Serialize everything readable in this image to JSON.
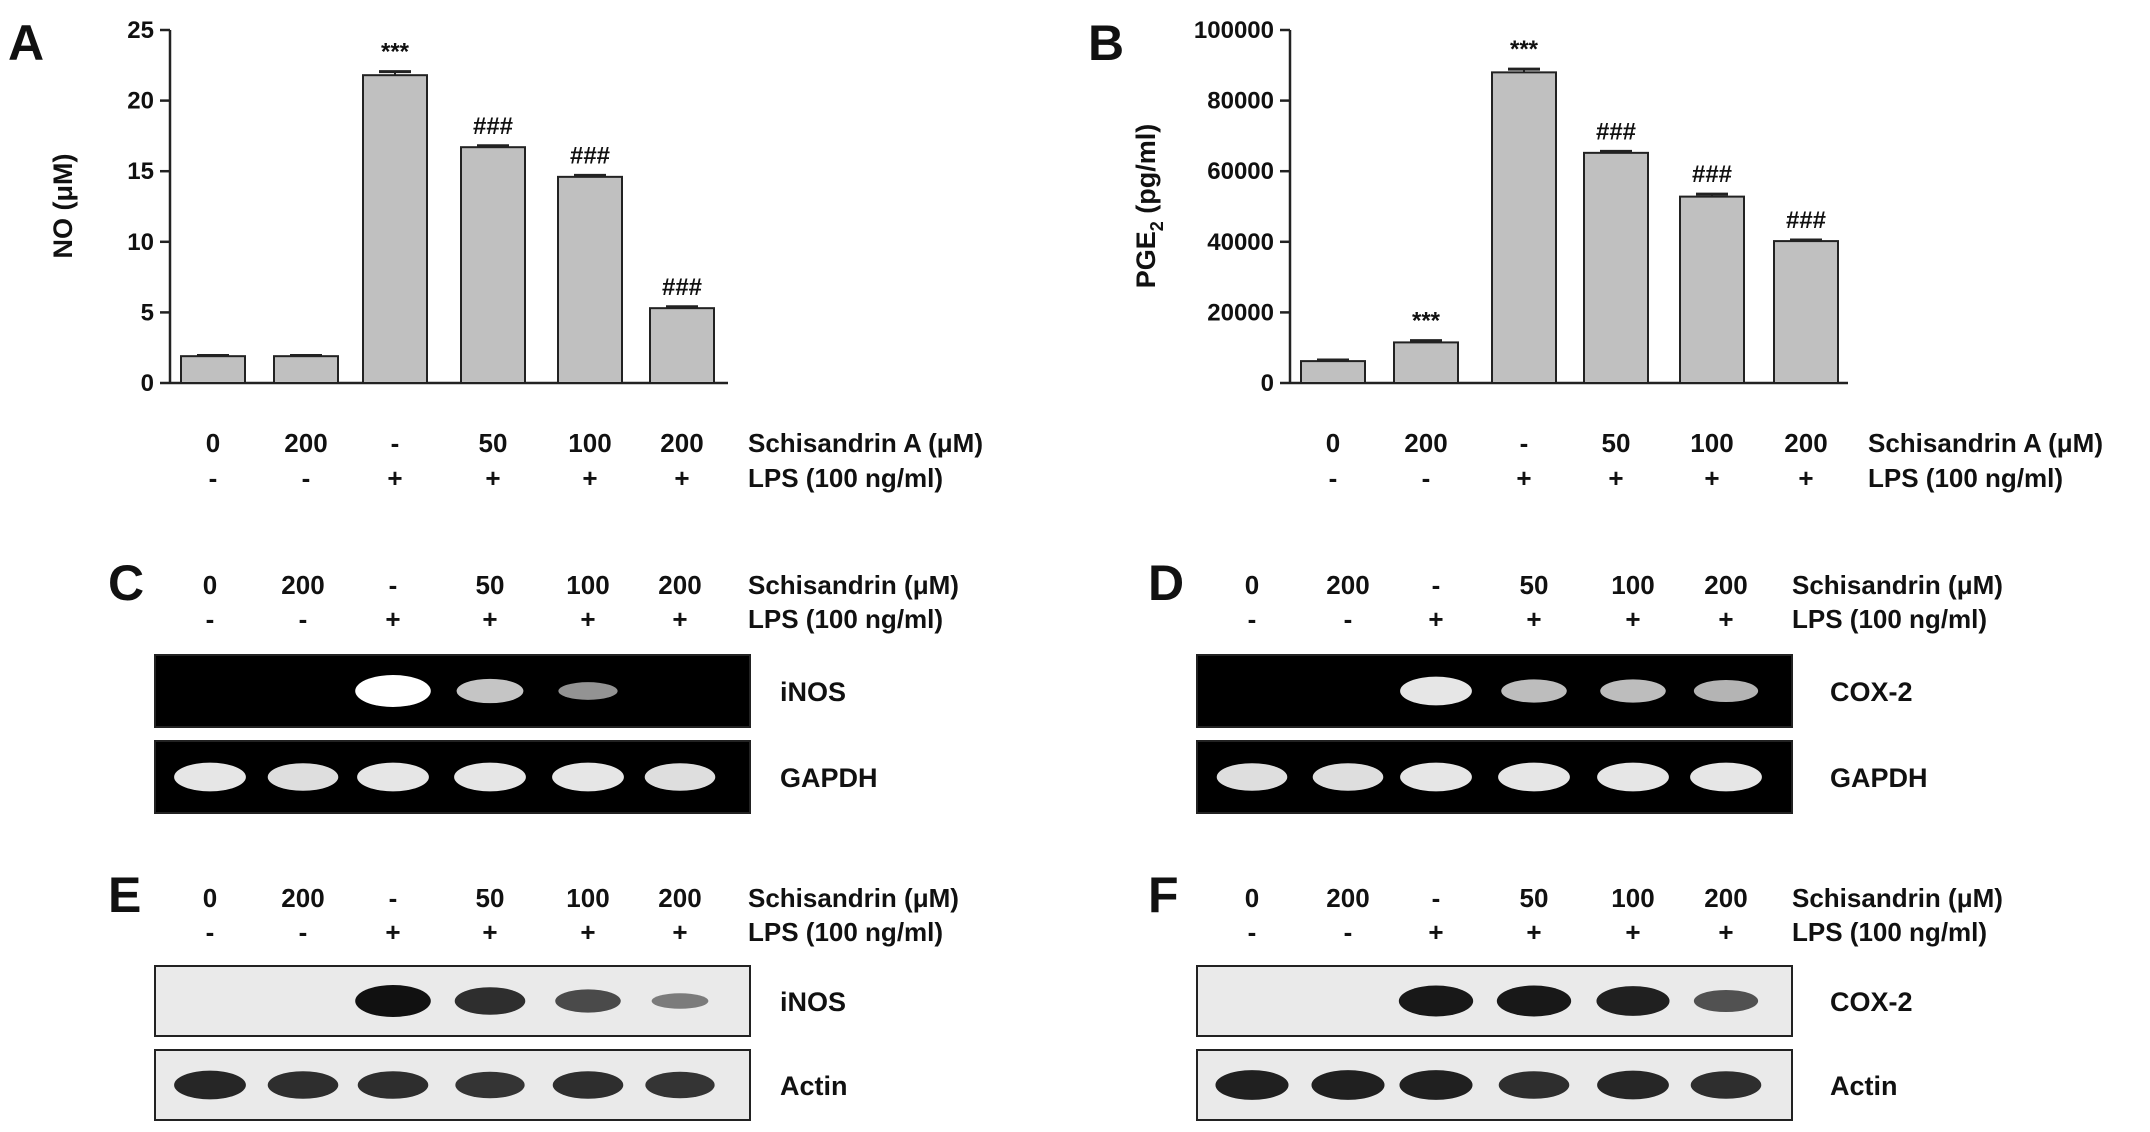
{
  "panels": [
    {
      "letter": "A"
    },
    {
      "letter": "B"
    },
    {
      "letter": "C"
    },
    {
      "letter": "D"
    },
    {
      "letter": "E"
    },
    {
      "letter": "F"
    }
  ],
  "condition_rows": {
    "schisandrin_doses": [
      "0",
      "200",
      "-",
      "50",
      "100",
      "200"
    ],
    "lps_signs": [
      "-",
      "-",
      "+",
      "+",
      "+",
      "+"
    ],
    "label_schisandrin_a": "Schisandrin A (μM)",
    "label_schisandrin": "Schisandrin (μM)",
    "label_lps": "LPS (100 ng/ml)"
  },
  "chart_data": [
    {
      "panel": "A",
      "type": "bar",
      "categories": [
        "0 / -",
        "200 / -",
        "- / +",
        "50 / +",
        "100 / +",
        "200 / +"
      ],
      "values": [
        1.9,
        1.9,
        21.8,
        16.7,
        14.6,
        5.3
      ],
      "errors": [
        0.05,
        0.05,
        0.25,
        0.1,
        0.1,
        0.1
      ],
      "annotations": [
        "",
        "",
        "***",
        "###",
        "###",
        "###"
      ],
      "ylabel": "NO  (μM)",
      "ylim": [
        0,
        25
      ],
      "yticks": [
        "0",
        "5",
        "10",
        "15",
        "20",
        "25"
      ],
      "bar_color": "#c0c0c0"
    },
    {
      "panel": "B",
      "type": "bar",
      "categories": [
        "0 / -",
        "200 / -",
        "- / +",
        "50 / +",
        "100 / +",
        "200 / +"
      ],
      "values": [
        6200,
        11500,
        88000,
        65200,
        52800,
        40200
      ],
      "errors": [
        300,
        500,
        900,
        400,
        700,
        300
      ],
      "annotations": [
        "",
        "***",
        "***",
        "###",
        "###",
        "###"
      ],
      "ylabel_main": "PGE",
      "ylabel_sub": "2",
      "ylabel_tail": " (pg/ml)",
      "ylim": [
        0,
        100000
      ],
      "yticks": [
        "0",
        "20000",
        "40000",
        "60000",
        "80000",
        "100000"
      ],
      "bar_color": "#c0c0c0"
    }
  ],
  "blots": {
    "C": {
      "bands": [
        {
          "label": "iNOS",
          "background": "#000000",
          "band_color": "#ffffff",
          "intensity": [
            0,
            0,
            1.0,
            0.65,
            0.35,
            0
          ]
        },
        {
          "label": "GAPDH",
          "background": "#000000",
          "band_color": "#ffffff",
          "intensity": [
            0.85,
            0.8,
            0.85,
            0.85,
            0.85,
            0.8
          ]
        }
      ]
    },
    "D": {
      "bands": [
        {
          "label": "COX-2",
          "background": "#000000",
          "band_color": "#ffffff",
          "intensity": [
            0,
            0,
            0.85,
            0.6,
            0.6,
            0.55
          ]
        },
        {
          "label": "GAPDH",
          "background": "#000000",
          "band_color": "#ffffff",
          "intensity": [
            0.8,
            0.8,
            0.85,
            0.85,
            0.85,
            0.85
          ]
        }
      ]
    },
    "E": {
      "bands": [
        {
          "label": "iNOS",
          "background": "#eaeaea",
          "band_color": "#111111",
          "intensity": [
            0,
            0,
            1.0,
            0.8,
            0.6,
            0.25
          ]
        },
        {
          "label": "Actin",
          "background": "#eaeaea",
          "band_color": "#111111",
          "intensity": [
            0.85,
            0.8,
            0.8,
            0.75,
            0.8,
            0.75
          ]
        }
      ]
    },
    "F": {
      "bands": [
        {
          "label": "COX-2",
          "background": "#eaeaea",
          "band_color": "#111111",
          "intensity": [
            0,
            0,
            0.95,
            0.95,
            0.9,
            0.55
          ]
        },
        {
          "label": "Actin",
          "background": "#eaeaea",
          "band_color": "#111111",
          "intensity": [
            0.9,
            0.9,
            0.9,
            0.8,
            0.85,
            0.8
          ]
        }
      ]
    }
  }
}
